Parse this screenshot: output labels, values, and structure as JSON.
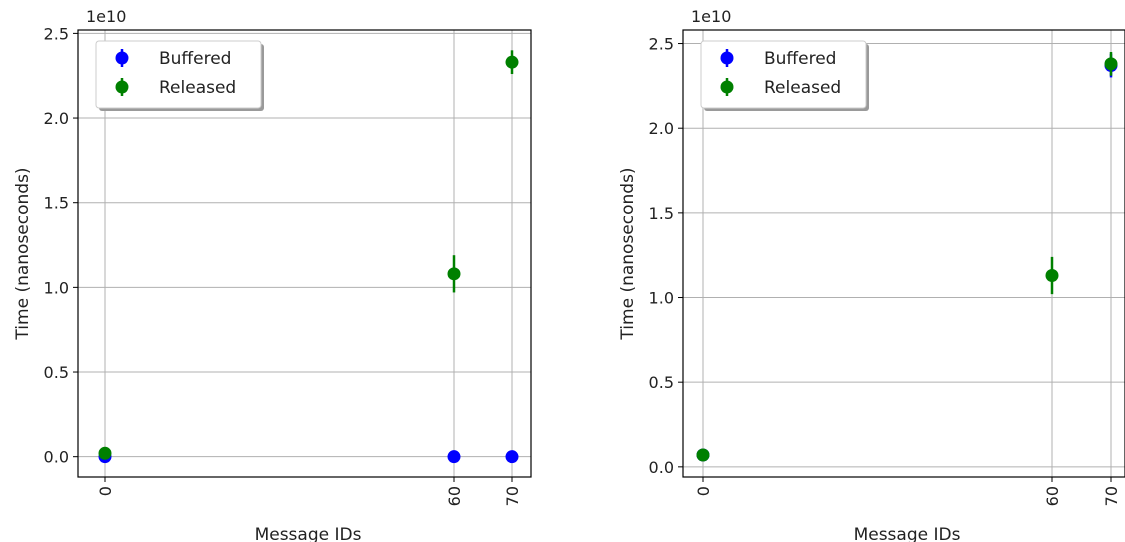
{
  "chart_data": [
    {
      "type": "scatter",
      "title": "",
      "xlabel": "Message IDs",
      "ylabel": "Time (nanoseconds)",
      "offset_text": "1e10",
      "ylim": [
        -0.12,
        2.52
      ],
      "x_ticks": [
        0,
        60,
        70
      ],
      "y_ticks": [
        0.0,
        0.5,
        1.0,
        1.5,
        2.0,
        2.5
      ],
      "y_tick_labels": [
        "0.0",
        "0.5",
        "1.0",
        "1.5",
        "2.0",
        "2.5"
      ],
      "grid": true,
      "legend_placement": "upper-left",
      "series": [
        {
          "name": "Buffered",
          "color": "#0000ff",
          "points": [
            {
              "x": 0,
              "y": 0.0,
              "err": 0.0
            },
            {
              "x": 60,
              "y": 0.0,
              "err": 0.0
            },
            {
              "x": 70,
              "y": 0.0,
              "err": 0.0
            }
          ]
        },
        {
          "name": "Released",
          "color": "#008000",
          "points": [
            {
              "x": 0,
              "y": 0.02,
              "err": 0.0
            },
            {
              "x": 60,
              "y": 1.08,
              "err": 0.11
            },
            {
              "x": 70,
              "y": 2.33,
              "err": 0.07
            }
          ]
        }
      ]
    },
    {
      "type": "scatter",
      "title": "",
      "xlabel": "Message IDs",
      "ylabel": "Time (nanoseconds)",
      "offset_text": "1e10",
      "ylim": [
        -0.06,
        2.58
      ],
      "x_ticks": [
        0,
        60,
        70
      ],
      "y_ticks": [
        0.0,
        0.5,
        1.0,
        1.5,
        2.0,
        2.5
      ],
      "y_tick_labels": [
        "0.0",
        "0.5",
        "1.0",
        "1.5",
        "2.0",
        "2.5"
      ],
      "grid": true,
      "legend_placement": "upper-left",
      "series": [
        {
          "name": "Buffered",
          "color": "#0000ff",
          "points": [
            {
              "x": 0,
              "y": 0.07,
              "err": 0.0
            },
            {
              "x": 70,
              "y": 2.37,
              "err": 0.07
            }
          ]
        },
        {
          "name": "Released",
          "color": "#008000",
          "points": [
            {
              "x": 0,
              "y": 0.07,
              "err": 0.0
            },
            {
              "x": 60,
              "y": 1.13,
              "err": 0.11
            },
            {
              "x": 70,
              "y": 2.38,
              "err": 0.07
            }
          ]
        }
      ]
    }
  ]
}
